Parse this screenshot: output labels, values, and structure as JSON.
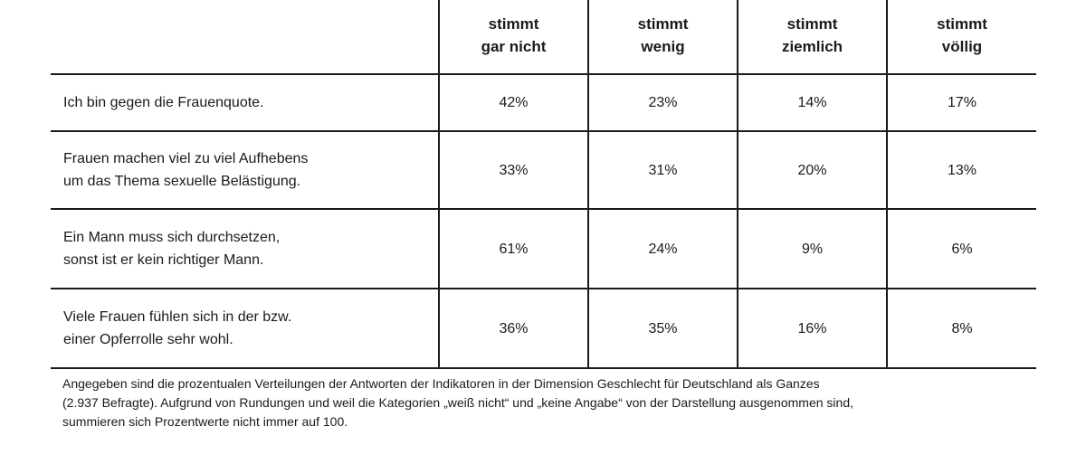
{
  "chart_data": {
    "type": "table",
    "columns": [
      {
        "line1": "stimmt",
        "line2": "gar nicht"
      },
      {
        "line1": "stimmt",
        "line2": "wenig"
      },
      {
        "line1": "stimmt",
        "line2": "ziemlich"
      },
      {
        "line1": "stimmt",
        "line2": "völlig"
      }
    ],
    "rows": [
      {
        "statement_lines": [
          "Ich bin gegen die Frauenquote."
        ],
        "values": [
          "42%",
          "23%",
          "14%",
          "17%"
        ]
      },
      {
        "statement_lines": [
          "Frauen machen viel zu viel Aufhebens",
          "um das Thema sexuelle Belästigung."
        ],
        "values": [
          "33%",
          "31%",
          "20%",
          "13%"
        ]
      },
      {
        "statement_lines": [
          "Ein Mann muss sich durchsetzen,",
          "sonst ist er kein richtiger Mann."
        ],
        "values": [
          "61%",
          "24%",
          "9%",
          "6%"
        ]
      },
      {
        "statement_lines": [
          "Viele Frauen fühlen sich in der bzw.",
          "einer Opferrolle sehr wohl."
        ],
        "values": [
          "36%",
          "35%",
          "16%",
          "8%"
        ]
      }
    ],
    "note_lines": [
      "Angegeben sind die prozentualen Verteilungen der Antworten der Indikatoren in der Dimension Geschlecht für Deutschland als Ganzes",
      "(2.937 Befragte). Aufgrund von Rundungen und weil die Kategorien „weiß nicht“ und „keine Angabe“ von der Darstellung ausgenommen sind,",
      "summieren sich Prozentwerte nicht immer auf 100."
    ]
  }
}
